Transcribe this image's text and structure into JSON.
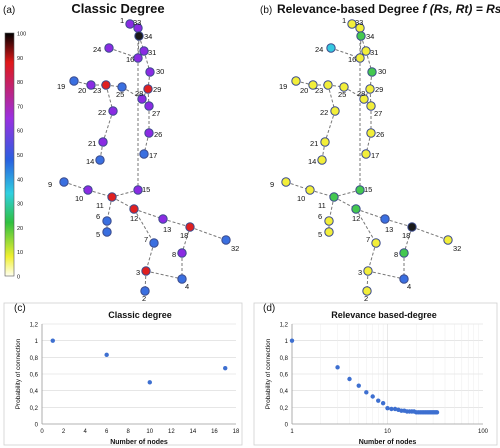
{
  "panel_a": {
    "label": "(a)",
    "title": "Classic Degree",
    "colorbar_ticks": [
      "100",
      "90",
      "80",
      "70",
      "60",
      "50",
      "40",
      "30",
      "20",
      "10",
      "0"
    ]
  },
  "panel_b": {
    "label": "(b)",
    "title_prefix": "Relevance-based Degree ",
    "title_formula": "f (Rs, Rt) = Rs·Rt"
  },
  "graph": {
    "nodes": [
      {
        "id": "1",
        "a": "purple",
        "b": "yellow"
      },
      {
        "id": "2",
        "a": "blue",
        "b": "yellow"
      },
      {
        "id": "3",
        "a": "red",
        "b": "yellow"
      },
      {
        "id": "4",
        "a": "blue",
        "b": "blue"
      },
      {
        "id": "5",
        "a": "blue",
        "b": "yellow"
      },
      {
        "id": "6",
        "a": "blue",
        "b": "yellow"
      },
      {
        "id": "7",
        "a": "blue",
        "b": "yellow"
      },
      {
        "id": "8",
        "a": "purple",
        "b": "green"
      },
      {
        "id": "9",
        "a": "blue",
        "b": "yellow"
      },
      {
        "id": "10",
        "a": "purple",
        "b": "yellow"
      },
      {
        "id": "11",
        "a": "red",
        "b": "green"
      },
      {
        "id": "12",
        "a": "red",
        "b": "green"
      },
      {
        "id": "13",
        "a": "purple",
        "b": "blue"
      },
      {
        "id": "14",
        "a": "blue",
        "b": "yellow"
      },
      {
        "id": "15",
        "a": "purple",
        "b": "green"
      },
      {
        "id": "16",
        "a": "purple",
        "b": "yellow"
      },
      {
        "id": "17",
        "a": "blue",
        "b": "yellow"
      },
      {
        "id": "18",
        "a": "red",
        "b": "black"
      },
      {
        "id": "19",
        "a": "blue",
        "b": "yellow"
      },
      {
        "id": "20",
        "a": "purple",
        "b": "yellow"
      },
      {
        "id": "21",
        "a": "purple",
        "b": "yellow"
      },
      {
        "id": "22",
        "a": "purple",
        "b": "yellow"
      },
      {
        "id": "23",
        "a": "red",
        "b": "yellow"
      },
      {
        "id": "24",
        "a": "purple",
        "b": "cyan"
      },
      {
        "id": "25",
        "a": "blue",
        "b": "yellow"
      },
      {
        "id": "26",
        "a": "purple",
        "b": "yellow"
      },
      {
        "id": "27",
        "a": "purple",
        "b": "yellow"
      },
      {
        "id": "28",
        "a": "purple",
        "b": "yellow"
      },
      {
        "id": "29",
        "a": "red",
        "b": "yellow"
      },
      {
        "id": "30",
        "a": "purple",
        "b": "green"
      },
      {
        "id": "31",
        "a": "purple",
        "b": "yellow"
      },
      {
        "id": "32",
        "a": "blue",
        "b": "yellow"
      },
      {
        "id": "33",
        "a": "purple",
        "b": "yellow"
      },
      {
        "id": "34",
        "a": "black",
        "b": "green"
      }
    ],
    "edges": [
      [
        "1",
        "33"
      ],
      [
        "33",
        "34"
      ],
      [
        "34",
        "31"
      ],
      [
        "34",
        "16"
      ],
      [
        "24",
        "16"
      ],
      [
        "16",
        "31"
      ],
      [
        "31",
        "30"
      ],
      [
        "30",
        "29"
      ],
      [
        "29",
        "27"
      ],
      [
        "29",
        "28"
      ],
      [
        "28",
        "27"
      ],
      [
        "27",
        "26"
      ],
      [
        "26",
        "17"
      ],
      [
        "33",
        "15"
      ],
      [
        "19",
        "20"
      ],
      [
        "20",
        "23"
      ],
      [
        "23",
        "25"
      ],
      [
        "25",
        "28"
      ],
      [
        "23",
        "22"
      ],
      [
        "22",
        "21"
      ],
      [
        "21",
        "14"
      ],
      [
        "15",
        "11"
      ],
      [
        "9",
        "10"
      ],
      [
        "10",
        "11"
      ],
      [
        "11",
        "12"
      ],
      [
        "12",
        "13"
      ],
      [
        "13",
        "18"
      ],
      [
        "18",
        "32"
      ],
      [
        "11",
        "6"
      ],
      [
        "6",
        "5"
      ],
      [
        "12",
        "7"
      ],
      [
        "7",
        "3"
      ],
      [
        "3",
        "2"
      ],
      [
        "18",
        "8"
      ],
      [
        "8",
        "4"
      ],
      [
        "3",
        "4"
      ]
    ],
    "colors": {
      "purple": "#8a2be2",
      "blue": "#3a6fe0",
      "red": "#e02020",
      "yellow": "#f2ee3a",
      "green": "#44c850",
      "cyan": "#35c8e0",
      "black": "#1a1a1a"
    }
  },
  "chart_data": [
    {
      "panel_label": "(c)",
      "type": "scatter",
      "title": "Classic degree",
      "xlabel": "Number of nodes",
      "ylabel": "Probability of connection",
      "x_ticks": [
        "0",
        "2",
        "4",
        "6",
        "8",
        "10",
        "12",
        "14",
        "16",
        "18"
      ],
      "y_ticks": [
        "0",
        "0,2",
        "0,4",
        "0,6",
        "0,8",
        "1",
        "1,2"
      ],
      "xlim": [
        0,
        18
      ],
      "ylim": [
        0,
        1.2
      ],
      "grid": "horizontal",
      "points": [
        {
          "x": 1,
          "y": 1.0
        },
        {
          "x": 6,
          "y": 0.83
        },
        {
          "x": 10,
          "y": 0.5
        },
        {
          "x": 17,
          "y": 0.67
        }
      ]
    },
    {
      "panel_label": "(d)",
      "type": "scatter",
      "title": "Relevance based-degree",
      "xlabel": "Number of nodes",
      "ylabel": "Probability of connection",
      "x_scale": "log",
      "x_ticks": [
        "1",
        "10",
        "100"
      ],
      "y_ticks": [
        "0",
        "0,2",
        "0,4",
        "0,6",
        "0,8",
        "1",
        "1,2"
      ],
      "xlim": [
        1,
        100
      ],
      "ylim": [
        0,
        1.2
      ],
      "grid": "horizontal",
      "points": [
        {
          "x": 1,
          "y": 1.0
        },
        {
          "x": 3,
          "y": 0.68
        },
        {
          "x": 4,
          "y": 0.54
        },
        {
          "x": 5,
          "y": 0.46
        },
        {
          "x": 6,
          "y": 0.38
        },
        {
          "x": 7,
          "y": 0.33
        },
        {
          "x": 8,
          "y": 0.28
        },
        {
          "x": 9,
          "y": 0.25
        },
        {
          "x": 10,
          "y": 0.19
        },
        {
          "x": 11,
          "y": 0.18
        },
        {
          "x": 12,
          "y": 0.18
        },
        {
          "x": 13,
          "y": 0.17
        },
        {
          "x": 14,
          "y": 0.16
        },
        {
          "x": 15,
          "y": 0.16
        },
        {
          "x": 16,
          "y": 0.15
        },
        {
          "x": 17,
          "y": 0.15
        },
        {
          "x": 18,
          "y": 0.15
        },
        {
          "x": 19,
          "y": 0.15
        },
        {
          "x": 20,
          "y": 0.14
        },
        {
          "x": 21,
          "y": 0.14
        },
        {
          "x": 22,
          "y": 0.14
        },
        {
          "x": 23,
          "y": 0.14
        },
        {
          "x": 24,
          "y": 0.14
        },
        {
          "x": 25,
          "y": 0.14
        },
        {
          "x": 26,
          "y": 0.14
        },
        {
          "x": 27,
          "y": 0.14
        },
        {
          "x": 28,
          "y": 0.14
        },
        {
          "x": 29,
          "y": 0.14
        },
        {
          "x": 30,
          "y": 0.14
        },
        {
          "x": 31,
          "y": 0.14
        },
        {
          "x": 32,
          "y": 0.14
        },
        {
          "x": 33,
          "y": 0.14
        }
      ]
    }
  ]
}
